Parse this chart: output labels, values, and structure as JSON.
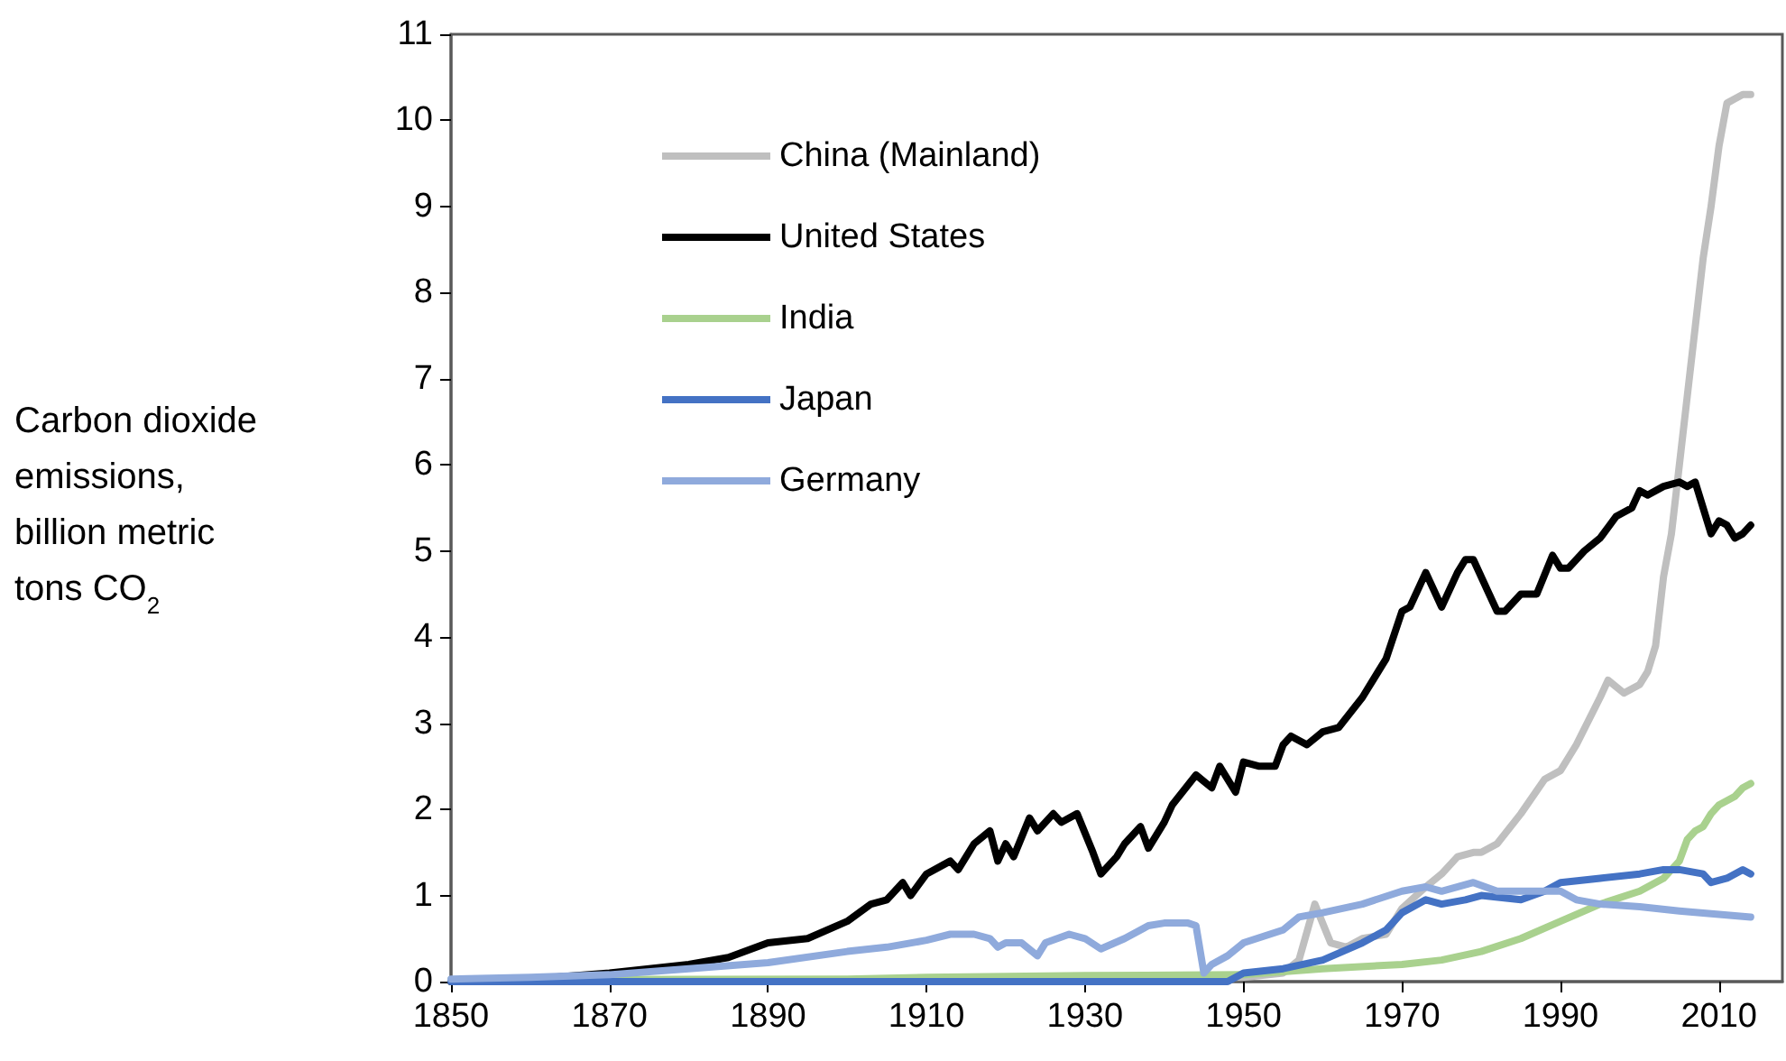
{
  "chart_data": {
    "type": "line",
    "ylabel": "Carbon dioxide emissions, billion metric tons CO$_{2}$",
    "xlim": [
      1850,
      2018
    ],
    "xticks": [
      1850,
      1870,
      1890,
      1910,
      1930,
      1950,
      1970,
      1990,
      2010
    ],
    "ylim": [
      0,
      11
    ],
    "yticks": [
      0,
      1,
      2,
      3,
      4,
      5,
      6,
      7,
      8,
      9,
      10,
      11
    ],
    "grid": false,
    "legend": "top left",
    "marker": "none",
    "line_style": "solid",
    "series": [
      {
        "name": "China (Mainland)",
        "color": "#bfbfbf",
        "x": [
          1850,
          1900,
          1950,
          1955,
          1957,
          1959,
          1961,
          1963,
          1965,
          1968,
          1970,
          1973,
          1975,
          1977,
          1979,
          1980,
          1982,
          1985,
          1988,
          1990,
          1992,
          1995,
          1996,
          1998,
          2000,
          2001,
          2002,
          2003,
          2004,
          2005,
          2006,
          2007,
          2008,
          2009,
          2010,
          2011,
          2012,
          2013,
          2014
        ],
        "values": [
          0.0,
          0.01,
          0.05,
          0.1,
          0.25,
          0.9,
          0.45,
          0.4,
          0.5,
          0.55,
          0.85,
          1.1,
          1.25,
          1.45,
          1.5,
          1.5,
          1.6,
          1.95,
          2.35,
          2.45,
          2.75,
          3.3,
          3.5,
          3.35,
          3.45,
          3.6,
          3.9,
          4.7,
          5.2,
          6.0,
          6.8,
          7.6,
          8.4,
          9.0,
          9.7,
          10.2,
          10.25,
          10.3,
          10.3
        ]
      },
      {
        "name": "United States",
        "color": "#000000",
        "x": [
          1850,
          1860,
          1870,
          1875,
          1880,
          1885,
          1890,
          1895,
          1900,
          1903,
          1905,
          1907,
          1908,
          1910,
          1913,
          1914,
          1916,
          1918,
          1919,
          1920,
          1921,
          1923,
          1924,
          1926,
          1927,
          1929,
          1931,
          1932,
          1934,
          1935,
          1937,
          1938,
          1940,
          1941,
          1944,
          1946,
          1947,
          1949,
          1950,
          1952,
          1954,
          1955,
          1956,
          1958,
          1960,
          1962,
          1965,
          1968,
          1970,
          1971,
          1973,
          1975,
          1977,
          1978,
          1979,
          1981,
          1982,
          1983,
          1985,
          1987,
          1989,
          1990,
          1991,
          1993,
          1995,
          1997,
          1999,
          2000,
          2001,
          2003,
          2005,
          2006,
          2007,
          2008,
          2009,
          2010,
          2011,
          2012,
          2013,
          2014
        ],
        "values": [
          0.0,
          0.03,
          0.1,
          0.15,
          0.2,
          0.28,
          0.45,
          0.5,
          0.7,
          0.9,
          0.95,
          1.15,
          1.0,
          1.25,
          1.4,
          1.3,
          1.6,
          1.75,
          1.4,
          1.6,
          1.45,
          1.9,
          1.75,
          1.95,
          1.85,
          1.95,
          1.5,
          1.25,
          1.45,
          1.6,
          1.8,
          1.55,
          1.85,
          2.05,
          2.4,
          2.25,
          2.5,
          2.2,
          2.55,
          2.5,
          2.5,
          2.75,
          2.85,
          2.75,
          2.9,
          2.95,
          3.3,
          3.75,
          4.3,
          4.35,
          4.75,
          4.35,
          4.75,
          4.9,
          4.9,
          4.5,
          4.3,
          4.3,
          4.5,
          4.5,
          4.95,
          4.8,
          4.8,
          5.0,
          5.15,
          5.4,
          5.5,
          5.7,
          5.65,
          5.75,
          5.8,
          5.75,
          5.8,
          5.5,
          5.2,
          5.35,
          5.3,
          5.15,
          5.2,
          5.3
        ]
      },
      {
        "name": "India",
        "color": "#a9d18e",
        "x": [
          1850,
          1900,
          1910,
          1930,
          1950,
          1960,
          1970,
          1975,
          1980,
          1985,
          1990,
          1995,
          2000,
          2003,
          2005,
          2006,
          2007,
          2008,
          2009,
          2010,
          2011,
          2012,
          2013,
          2014
        ],
        "values": [
          0.02,
          0.03,
          0.05,
          0.07,
          0.08,
          0.15,
          0.2,
          0.25,
          0.35,
          0.5,
          0.7,
          0.9,
          1.05,
          1.2,
          1.4,
          1.65,
          1.75,
          1.8,
          1.95,
          2.05,
          2.1,
          2.15,
          2.25,
          2.3
        ]
      },
      {
        "name": "Japan",
        "color": "#4472c4",
        "x": [
          1850,
          1948,
          1950,
          1955,
          1960,
          1965,
          1968,
          1970,
          1973,
          1975,
          1978,
          1980,
          1985,
          1988,
          1990,
          1995,
          2000,
          2003,
          2005,
          2008,
          2009,
          2011,
          2013,
          2014
        ],
        "values": [
          0.0,
          0.0,
          0.1,
          0.15,
          0.25,
          0.45,
          0.6,
          0.8,
          0.95,
          0.9,
          0.95,
          1.0,
          0.95,
          1.05,
          1.15,
          1.2,
          1.25,
          1.3,
          1.3,
          1.25,
          1.15,
          1.2,
          1.3,
          1.25
        ]
      },
      {
        "name": "Germany",
        "color": "#8faadc",
        "x": [
          1850,
          1860,
          1870,
          1880,
          1890,
          1900,
          1905,
          1910,
          1913,
          1916,
          1918,
          1919,
          1920,
          1922,
          1924,
          1925,
          1928,
          1930,
          1932,
          1935,
          1938,
          1940,
          1943,
          1944,
          1945,
          1946,
          1948,
          1950,
          1955,
          1957,
          1960,
          1965,
          1970,
          1973,
          1975,
          1979,
          1982,
          1985,
          1990,
          1992,
          1995,
          2000,
          2005,
          2010,
          2014
        ],
        "values": [
          0.03,
          0.05,
          0.08,
          0.15,
          0.22,
          0.35,
          0.4,
          0.48,
          0.55,
          0.55,
          0.5,
          0.4,
          0.45,
          0.45,
          0.3,
          0.45,
          0.55,
          0.5,
          0.38,
          0.5,
          0.65,
          0.68,
          0.68,
          0.65,
          0.1,
          0.2,
          0.3,
          0.45,
          0.6,
          0.75,
          0.8,
          0.9,
          1.05,
          1.1,
          1.05,
          1.15,
          1.05,
          1.05,
          1.05,
          0.95,
          0.9,
          0.87,
          0.82,
          0.78,
          0.75
        ]
      }
    ]
  }
}
